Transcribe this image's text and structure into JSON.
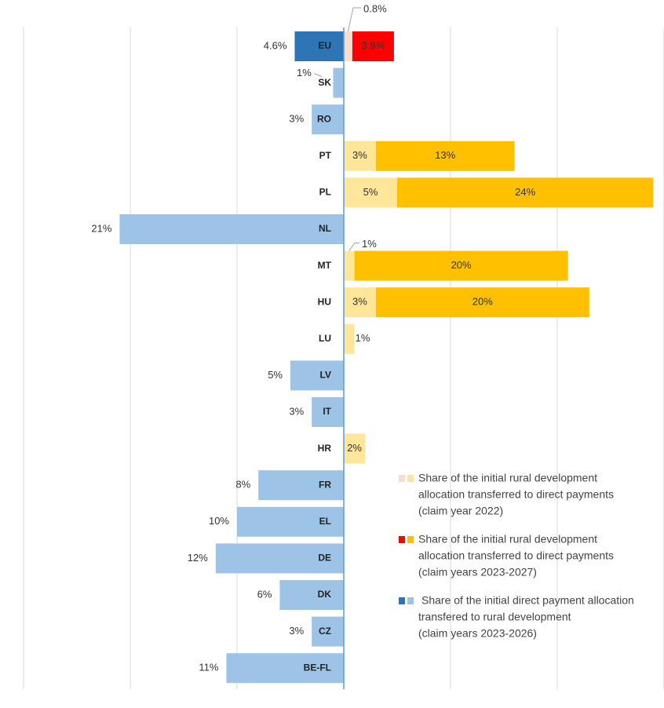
{
  "chart_data": {
    "type": "bar",
    "orientation": "horizontal",
    "stacked": true,
    "grid": true,
    "legend_position": "bottom-right",
    "x_range": [
      -30,
      30
    ],
    "x_grid_step": 10,
    "categories": [
      "EU",
      "SK",
      "RO",
      "PT",
      "PL",
      "NL",
      "MT",
      "HU",
      "LU",
      "LV",
      "IT",
      "HR",
      "FR",
      "EL",
      "DE",
      "DK",
      "CZ",
      "BE-FL"
    ],
    "series": [
      {
        "name": "Share of the initial rural development allocation transferred to direct payments (claim year 2022)",
        "legend_lines": [
          "Share of the initial rural development",
          "allocation transferred to direct payments",
          "(claim year 2022)"
        ],
        "colors": [
          "#f7ded0",
          "#ffe699"
        ],
        "values": [
          0.8,
          null,
          null,
          3,
          5,
          null,
          1,
          3,
          1,
          null,
          null,
          2,
          null,
          null,
          null,
          null,
          null,
          null
        ],
        "labels": [
          "0.8%",
          "",
          "",
          "3%",
          "5%",
          "",
          "1%",
          "3%",
          "1%",
          "",
          "",
          "2%",
          "",
          "",
          "",
          "",
          "",
          ""
        ]
      },
      {
        "name": "Share of the initial rural development allocation transferred to direct payments (claim years 2023-2027)",
        "legend_lines": [
          "Share of the initial rural development",
          "allocation transferred to direct payments",
          "(claim years 2023-2027)"
        ],
        "colors": [
          "#ff0000",
          "#ffc000"
        ],
        "values": [
          3.9,
          null,
          null,
          13,
          24,
          null,
          20,
          20,
          null,
          null,
          null,
          null,
          null,
          null,
          null,
          null,
          null,
          null
        ],
        "labels": [
          "3.9%",
          "",
          "",
          "13%",
          "24%",
          "",
          "20%",
          "20%",
          "",
          "",
          "",
          "",
          "",
          "",
          "",
          "",
          "",
          ""
        ]
      },
      {
        "name": "Share of the initial direct payment allocation transfered to rural development (claim years 2023-2026)",
        "legend_lines": [
          "Share of the initial direct payment allocation",
          "transfered to rural development",
          "(claim years 2023-2026)"
        ],
        "colors": [
          "#2e75b6",
          "#9dc3e6"
        ],
        "values": [
          -4.6,
          -1,
          -3,
          null,
          null,
          -21,
          null,
          null,
          null,
          -5,
          -3,
          null,
          -8,
          -10,
          -12,
          -6,
          -3,
          -11
        ],
        "labels": [
          "4.6%",
          "1%",
          "3%",
          "",
          "",
          "21%",
          "",
          "",
          "",
          "5%",
          "3%",
          "",
          "8%",
          "10%",
          "12%",
          "6%",
          "3%",
          "11%"
        ]
      }
    ]
  }
}
